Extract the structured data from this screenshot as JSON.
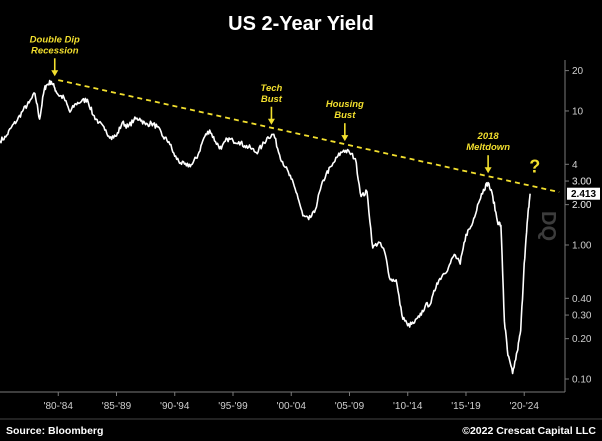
{
  "chart_data": {
    "type": "line",
    "title": "US 2-Year Yield",
    "y_scale": "log",
    "ylim": [
      0.08,
      24
    ],
    "y_ticks": [
      0.1,
      0.2,
      0.3,
      0.4,
      1.0,
      2.0,
      3.0,
      4,
      10,
      20
    ],
    "y_tick_labels": [
      "0.10",
      "0.20",
      "0.30",
      "0.40",
      "1.00",
      "2.00",
      "3.00",
      "4",
      "10",
      "20"
    ],
    "xlim": [
      1977.0,
      2025.5
    ],
    "x_ticks": [
      1982,
      1987,
      1992,
      1997,
      2002,
      2007,
      2012,
      2017,
      2022
    ],
    "x_tick_labels": [
      "'80-'84",
      "'85-'89",
      "'90-'94",
      "'95-'99",
      "'00-'04",
      "'05-'09",
      "'10-'14",
      "'15-'19",
      "'20-'24"
    ],
    "series": [
      {
        "color": "#ffffff",
        "x": [
          1977.0,
          1977.5,
          1978.0,
          1978.5,
          1979.0,
          1979.5,
          1980.0,
          1980.4,
          1980.8,
          1981.0,
          1981.4,
          1981.7,
          1982.0,
          1982.5,
          1983.0,
          1983.5,
          1984.0,
          1984.5,
          1985.0,
          1985.5,
          1986.0,
          1986.5,
          1987.0,
          1987.5,
          1988.0,
          1988.5,
          1989.0,
          1989.5,
          1990.0,
          1990.5,
          1991.0,
          1991.5,
          1992.0,
          1992.5,
          1993.0,
          1993.5,
          1994.0,
          1994.5,
          1995.0,
          1995.5,
          1996.0,
          1996.5,
          1997.0,
          1997.5,
          1998.0,
          1998.5,
          1999.0,
          1999.5,
          2000.0,
          2000.5,
          2001.0,
          2001.5,
          2002.0,
          2002.5,
          2003.0,
          2003.5,
          2004.0,
          2004.5,
          2005.0,
          2005.5,
          2006.0,
          2006.5,
          2007.0,
          2007.5,
          2008.0,
          2008.5,
          2009.0,
          2009.5,
          2010.0,
          2010.5,
          2011.0,
          2011.5,
          2012.0,
          2012.5,
          2013.0,
          2013.5,
          2014.0,
          2014.5,
          2015.0,
          2015.5,
          2016.0,
          2016.5,
          2017.0,
          2017.5,
          2018.0,
          2018.5,
          2018.9,
          2019.3,
          2019.7,
          2020.0,
          2020.3,
          2020.6,
          2021.0,
          2021.4,
          2021.7,
          2022.0,
          2022.3,
          2022.5
        ],
        "y": [
          6.0,
          6.4,
          7.6,
          8.6,
          10.2,
          11.5,
          13.5,
          8.7,
          14.5,
          15.6,
          16.6,
          14.8,
          13.2,
          12.5,
          9.8,
          11.3,
          11.8,
          12.2,
          9.3,
          8.2,
          7.2,
          6.4,
          6.5,
          8.2,
          7.6,
          8.6,
          8.8,
          7.9,
          8.1,
          7.6,
          6.4,
          5.9,
          4.6,
          4.1,
          3.9,
          4.0,
          4.7,
          6.3,
          7.2,
          5.9,
          5.2,
          6.2,
          6.0,
          5.9,
          5.5,
          5.3,
          4.9,
          5.5,
          6.4,
          6.7,
          4.7,
          3.8,
          3.1,
          2.4,
          1.65,
          1.55,
          1.75,
          2.6,
          3.4,
          3.9,
          4.6,
          5.1,
          4.9,
          4.4,
          2.3,
          2.5,
          0.95,
          1.05,
          0.9,
          0.55,
          0.55,
          0.3,
          0.25,
          0.26,
          0.29,
          0.35,
          0.37,
          0.52,
          0.6,
          0.68,
          0.85,
          0.72,
          1.2,
          1.4,
          2.0,
          2.6,
          2.92,
          2.3,
          1.5,
          1.4,
          0.27,
          0.15,
          0.11,
          0.16,
          0.23,
          0.73,
          1.6,
          2.413
        ]
      }
    ],
    "trendline": {
      "x": [
        1982.0,
        2025.0
      ],
      "y": [
        17.0,
        2.48
      ],
      "color": "#f2df2e",
      "style": "dashed"
    },
    "price_tags": [
      {
        "label": "3.00",
        "value": 3.0,
        "style": "text"
      },
      {
        "label": "2.413",
        "value": 2.413,
        "style": "box"
      },
      {
        "label": "2.00",
        "value": 2.0,
        "style": "text"
      }
    ],
    "annotations": [
      {
        "lines": [
          "Double Dip",
          "Recession"
        ],
        "arrow_x": 1981.7
      },
      {
        "lines": [
          "Tech",
          "Bust"
        ],
        "arrow_x": 2000.3
      },
      {
        "lines": [
          "Housing",
          "Bust"
        ],
        "arrow_x": 2006.6
      },
      {
        "lines": [
          "2018",
          "Meltdown"
        ],
        "arrow_x": 2018.9
      },
      {
        "lines": [
          "?"
        ],
        "arrow_x": null
      }
    ],
    "watermark": "DQ",
    "source": "Source: Bloomberg",
    "credit": "©2022 Crescat Capital LLC"
  }
}
